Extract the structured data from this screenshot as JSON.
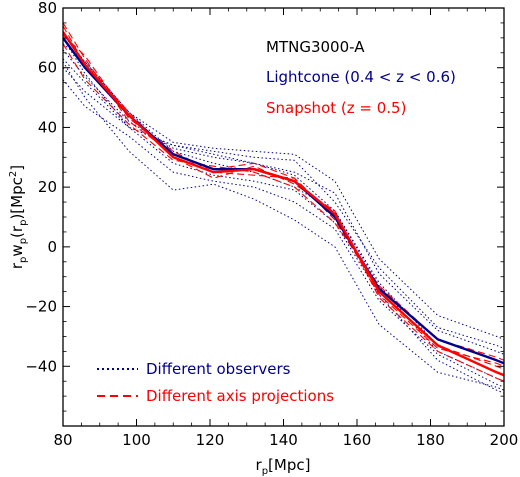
{
  "chart_data": {
    "type": "line",
    "xlabel": "r_p[Mpc]",
    "ylabel": "r_p w_p(r_p)[Mpc^2]",
    "xlim": [
      80,
      200
    ],
    "ylim": [
      -60,
      80
    ],
    "xticks": [
      80,
      100,
      120,
      140,
      160,
      180,
      200
    ],
    "yticks": [
      -40,
      -20,
      0,
      20,
      40,
      60,
      80
    ],
    "grid": false,
    "annotations": [
      {
        "text": "MTNG3000-A",
        "color": "#000000"
      },
      {
        "text": "Lightcone (0.4 < z < 0.6)",
        "color": "#00008b"
      },
      {
        "text": "Snapshot (z = 0.5)",
        "color": "#ff0000"
      }
    ],
    "legend": {
      "placement": "bottom-left",
      "entries": [
        {
          "label": "Different observers",
          "color": "#00008b",
          "style": "dotted"
        },
        {
          "label": "Different axis projections",
          "color": "#ff0000",
          "style": "dashed"
        }
      ]
    },
    "x": [
      80,
      86,
      98,
      110,
      121,
      132,
      143,
      154,
      166,
      182,
      198,
      200
    ],
    "series": [
      {
        "role": "lightcone-mean",
        "color": "#00008b",
        "style": "solid",
        "width": 2.4,
        "values": [
          70,
          60,
          44,
          31,
          26,
          26,
          22,
          10,
          -14,
          -31,
          -38,
          -39
        ]
      },
      {
        "role": "snapshot-mean",
        "color": "#ff0000",
        "style": "solid",
        "width": 2.4,
        "values": [
          72,
          61,
          44,
          30,
          25,
          26,
          22,
          11,
          -15,
          -33,
          -42,
          -43
        ]
      },
      {
        "role": "observer-1",
        "color": "#00008b",
        "style": "dotted",
        "width": 1,
        "values": [
          68,
          62,
          45,
          35,
          33,
          32,
          31,
          22,
          -4,
          -23,
          -30,
          -31
        ]
      },
      {
        "role": "observer-2",
        "color": "#00008b",
        "style": "dotted",
        "width": 1,
        "values": [
          63,
          55,
          40,
          34,
          32,
          30,
          29,
          15,
          -7,
          -27,
          -33,
          -34
        ]
      },
      {
        "role": "observer-3",
        "color": "#00008b",
        "style": "dotted",
        "width": 1,
        "values": [
          66,
          57,
          42,
          33,
          30,
          28,
          25,
          18,
          -9,
          -28,
          -35,
          -36
        ]
      },
      {
        "role": "observer-4",
        "color": "#00008b",
        "style": "dotted",
        "width": 1,
        "values": [
          71,
          62,
          45,
          32,
          28,
          25,
          20,
          12,
          -12,
          -33,
          -42,
          -43
        ]
      },
      {
        "role": "observer-5",
        "color": "#00008b",
        "style": "dotted",
        "width": 1,
        "values": [
          56,
          47,
          37,
          25,
          22,
          20,
          15,
          6,
          -18,
          -36,
          -46,
          -47
        ]
      },
      {
        "role": "observer-6",
        "color": "#00008b",
        "style": "dotted",
        "width": 1,
        "values": [
          60,
          52,
          40,
          28,
          24,
          22,
          19,
          8,
          -16,
          -38,
          -48,
          -49
        ]
      },
      {
        "role": "observer-7",
        "color": "#00008b",
        "style": "dotted",
        "width": 1,
        "values": [
          62,
          50,
          32,
          19,
          21,
          16,
          9,
          0,
          -26,
          -42,
          -47,
          -48
        ]
      },
      {
        "role": "observer-8",
        "color": "#00008b",
        "style": "dotted",
        "width": 1,
        "values": [
          70,
          58,
          40,
          34,
          31,
          28,
          24,
          12,
          -13,
          -35,
          -44,
          -45
        ]
      },
      {
        "role": "projection-1",
        "color": "#ff0000",
        "style": "dashed",
        "width": 1.1,
        "values": [
          75,
          63,
          42,
          31,
          26,
          28,
          23,
          9,
          -15,
          -33,
          -40,
          -41
        ]
      },
      {
        "role": "projection-2",
        "color": "#ff0000",
        "style": "dashed",
        "width": 1.1,
        "values": [
          74,
          61,
          45,
          30,
          23,
          27,
          21,
          12,
          -17,
          -35,
          -44,
          -45
        ]
      },
      {
        "role": "projection-3",
        "color": "#ff0000",
        "style": "dashed",
        "width": 1.1,
        "values": [
          68,
          56,
          41,
          29,
          27,
          25,
          20,
          8,
          -13,
          -31,
          -37,
          -38
        ]
      },
      {
        "role": "projection-4",
        "color": "#ff0000",
        "style": "dashed",
        "width": 1.1,
        "values": [
          71,
          64,
          43,
          32,
          25,
          24,
          23,
          10,
          -16,
          -34,
          -39,
          -40
        ]
      }
    ]
  }
}
